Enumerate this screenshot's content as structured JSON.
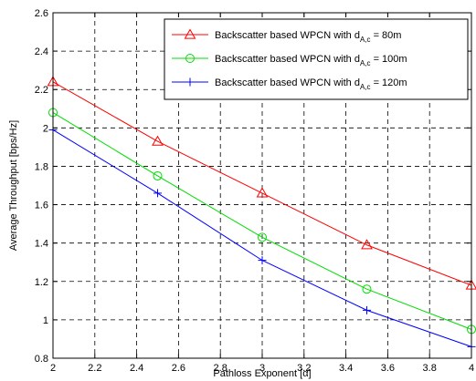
{
  "chart_data": {
    "type": "line",
    "title": "",
    "xlabel": "Pathloss Exponent [α]",
    "ylabel": "Average Throughput [bps/Hz]",
    "xlim": [
      2,
      4
    ],
    "ylim": [
      0.8,
      2.6
    ],
    "xticks": [
      "2",
      "2.2",
      "2.4",
      "2.6",
      "2.8",
      "3",
      "3.2",
      "3.4",
      "3.6",
      "3.8",
      "4"
    ],
    "yticks": [
      "0.8",
      "1",
      "1.2",
      "1.4",
      "1.6",
      "1.8",
      "2",
      "2.2",
      "2.4",
      "2.6"
    ],
    "grid": true,
    "legend_position": "top-right",
    "x": [
      2,
      2.5,
      3,
      3.5,
      4
    ],
    "series": [
      {
        "legend_main": "Backscatter based WPCN with d",
        "legend_sub": "A,c",
        "legend_tail": " = 80m",
        "values": [
          2.24,
          1.93,
          1.66,
          1.39,
          1.18
        ],
        "color": "#ff0000",
        "marker": "triangle"
      },
      {
        "legend_main": "Backscatter based WPCN with d",
        "legend_sub": "A,c",
        "legend_tail": " = 100m",
        "values": [
          2.08,
          1.75,
          1.43,
          1.16,
          0.95
        ],
        "color": "#00dd00",
        "marker": "circle"
      },
      {
        "legend_main": "Backscatter based WPCN with d",
        "legend_sub": "A,c",
        "legend_tail": " = 120m",
        "values": [
          1.99,
          1.66,
          1.31,
          1.05,
          0.86
        ],
        "color": "#0000ff",
        "marker": "plus"
      }
    ]
  }
}
